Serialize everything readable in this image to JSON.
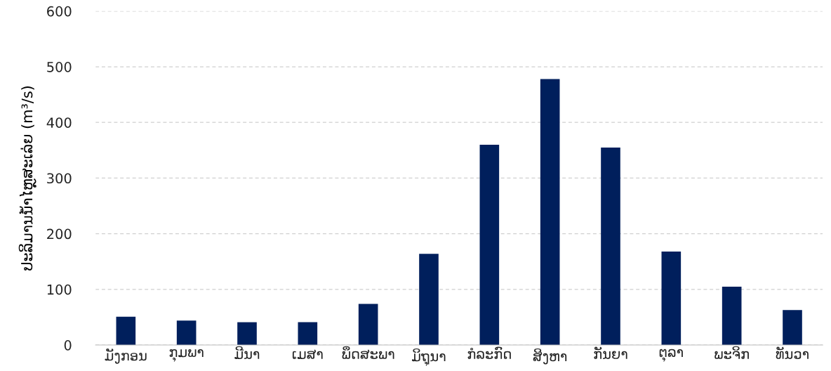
{
  "chart_data": {
    "type": "bar",
    "ylabel": "ປະລິມານນ້ຳໄຫຼສະເລ່ຍ (m³/s)",
    "categories": [
      "ມັງກອນ",
      "ກຸມພາ",
      "ມີນາ",
      "ເມສາ",
      "ພຶດສະພາ",
      "ມິຖຸນາ",
      "ກໍລະກົດ",
      "ສິງຫາ",
      "ກັນຍາ",
      "ຕຸລາ",
      "ພະຈິກ",
      "ທັນວາ"
    ],
    "values": [
      51,
      44,
      41,
      41,
      74,
      164,
      360,
      478,
      355,
      168,
      105,
      63
    ],
    "color": "#001f5c",
    "ylim": [
      0,
      600
    ],
    "yticks": [
      0,
      100,
      200,
      300,
      400,
      500,
      600
    ],
    "grid": "y"
  }
}
